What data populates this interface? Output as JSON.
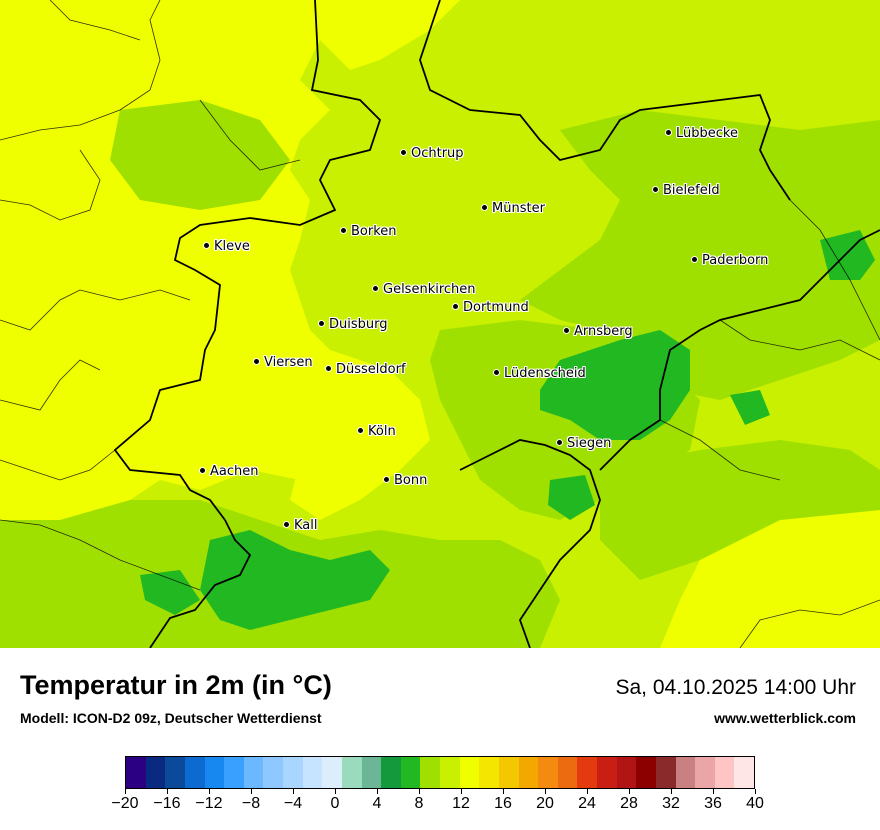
{
  "map": {
    "cities": [
      {
        "name": "Lübbecke",
        "id": "luebbecke"
      },
      {
        "name": "Ochtrup",
        "id": "ochtrup"
      },
      {
        "name": "Bielefeld",
        "id": "bielefeld"
      },
      {
        "name": "Münster",
        "id": "muenster"
      },
      {
        "name": "Borken",
        "id": "borken"
      },
      {
        "name": "Kleve",
        "id": "kleve"
      },
      {
        "name": "Paderborn",
        "id": "paderborn"
      },
      {
        "name": "Gelsenkirchen",
        "id": "gelsenkirchen"
      },
      {
        "name": "Dortmund",
        "id": "dortmund"
      },
      {
        "name": "Duisburg",
        "id": "duisburg"
      },
      {
        "name": "Arnsberg",
        "id": "arnsberg"
      },
      {
        "name": "Viersen",
        "id": "viersen"
      },
      {
        "name": "Düsseldorf",
        "id": "duesseldorf"
      },
      {
        "name": "Lüdenscheid",
        "id": "luedenscheid"
      },
      {
        "name": "Köln",
        "id": "koeln"
      },
      {
        "name": "Siegen",
        "id": "siegen"
      },
      {
        "name": "Aachen",
        "id": "aachen"
      },
      {
        "name": "Bonn",
        "id": "bonn"
      },
      {
        "name": "Kall",
        "id": "kall"
      }
    ],
    "colors": {
      "t12_14": "#c8f000",
      "t10_12": "#a0e000",
      "t8_10": "#22b822",
      "t14_16": "#f0ff00",
      "t16_18": "#f5e600"
    }
  },
  "footer": {
    "title": "Temperatur in 2m (in °C)",
    "model": "Modell: ICON-D2 09z, Deutscher Wetterdienst",
    "datetime": "Sa, 04.10.2025 14:00 Uhr",
    "website": "www.wetterblick.com"
  },
  "legend": {
    "colors": [
      "#2b0083",
      "#0a2a82",
      "#0b4a9a",
      "#0d6ad0",
      "#1688f0",
      "#3aa0ff",
      "#6cb8ff",
      "#8ec8ff",
      "#a8d6ff",
      "#c6e4ff",
      "#dcedfb",
      "#9adbbd",
      "#6cb596",
      "#149a3c",
      "#22b822",
      "#a0e000",
      "#c8f000",
      "#f0ff00",
      "#f5e600",
      "#f4c800",
      "#f3a800",
      "#f48a10",
      "#ec6a10",
      "#e43a10",
      "#c81e14",
      "#b01414",
      "#8c0000",
      "#8a2a2a",
      "#c88080",
      "#eaa6a6",
      "#ffc4c4",
      "#ffe6e6"
    ],
    "ticks": [
      "−20",
      "−16",
      "−12",
      "−8",
      "−4",
      "0",
      "4",
      "8",
      "12",
      "16",
      "20",
      "24",
      "28",
      "32",
      "36",
      "40"
    ]
  }
}
